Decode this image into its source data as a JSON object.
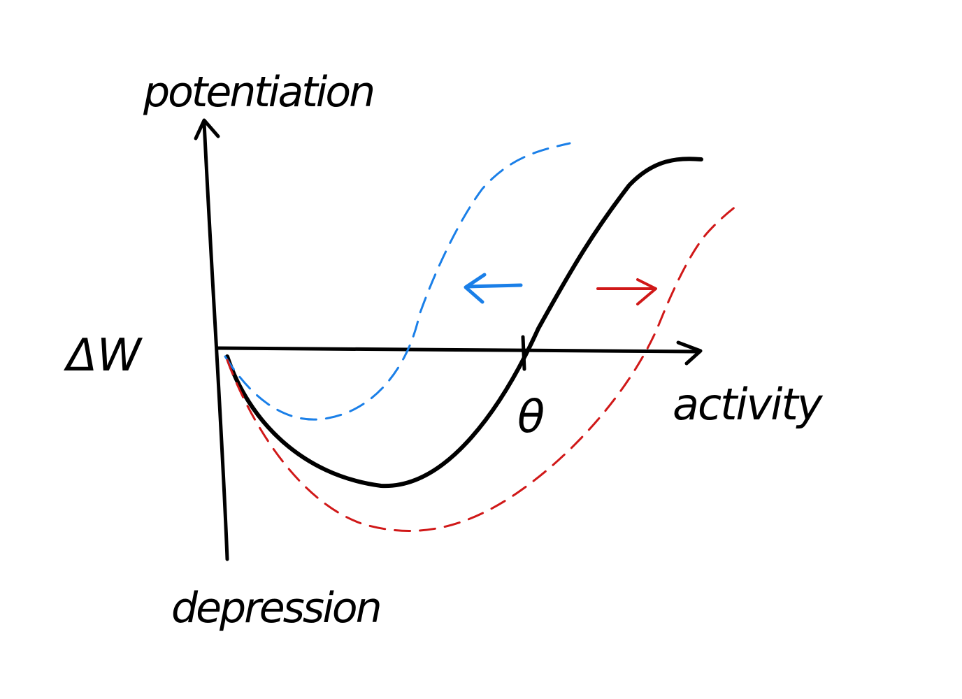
{
  "labels": {
    "top": "potentiation",
    "bottom": "depression",
    "left": "ΔW",
    "right": "activity",
    "threshold": "θ"
  },
  "colors": {
    "ink": "#000000",
    "shift_left": "#1a7fe8",
    "shift_right": "#d01818",
    "background": "#ffffff"
  }
}
